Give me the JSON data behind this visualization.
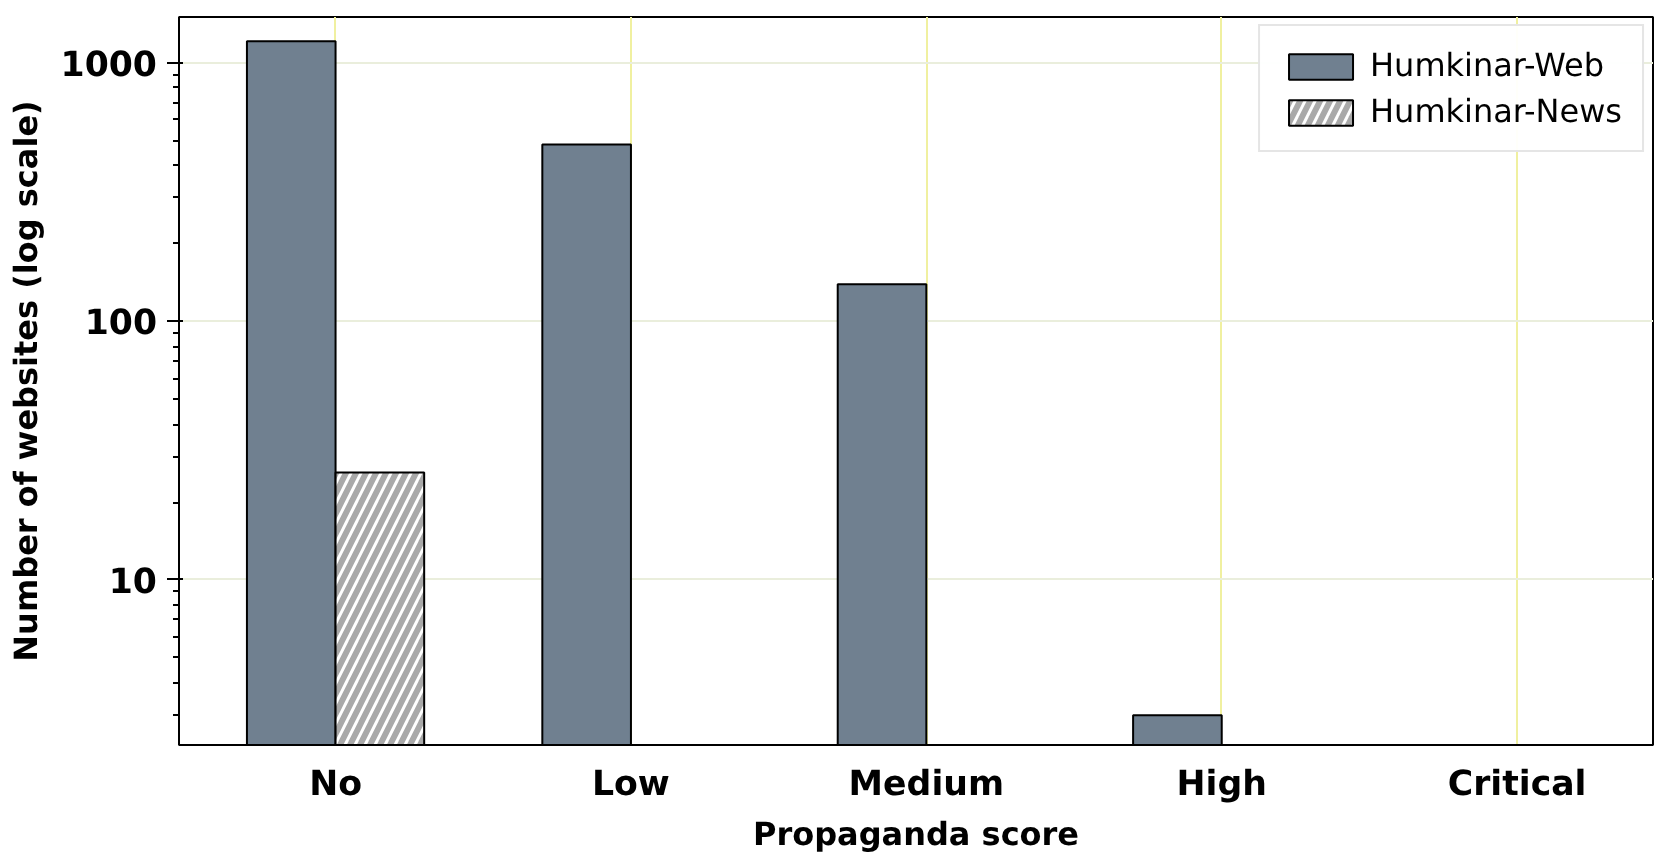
{
  "chart_data": {
    "type": "bar",
    "xlabel": "Propaganda score",
    "ylabel": "Number of websites (log scale)",
    "categories": [
      "No",
      "Low",
      "Medium",
      "High",
      "Critical"
    ],
    "series": [
      {
        "name": "Humkinar-Web",
        "color": "#708090",
        "values": [
          1210,
          482,
          139,
          3,
          null
        ]
      },
      {
        "name": "Humkinar-News",
        "color": "#a9a9a9",
        "values": [
          26,
          null,
          null,
          null,
          null
        ]
      }
    ],
    "log": true,
    "ylim": [
      2.3,
      1500
    ],
    "yticks": [
      10,
      100,
      1000
    ],
    "grid": true,
    "legend": "top right"
  }
}
